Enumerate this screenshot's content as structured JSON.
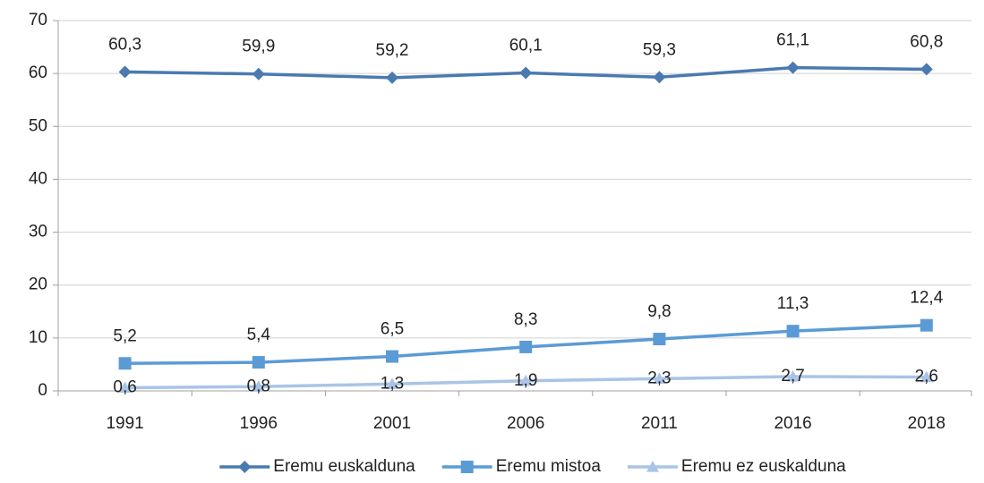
{
  "chart_data": {
    "type": "line",
    "categories": [
      "1991",
      "1996",
      "2001",
      "2006",
      "2011",
      "2016",
      "2018"
    ],
    "series": [
      {
        "name": "Eremu euskalduna",
        "color": "#4a7ab0",
        "marker": "diamond",
        "values": [
          60.3,
          59.9,
          59.2,
          60.1,
          59.3,
          61.1,
          60.8
        ],
        "value_labels": [
          "60,3",
          "59,9",
          "59,2",
          "60,1",
          "59,3",
          "61,1",
          "60,8"
        ]
      },
      {
        "name": "Eremu mistoa",
        "color": "#5b9bd5",
        "marker": "square",
        "values": [
          5.2,
          5.4,
          6.5,
          8.3,
          9.8,
          11.3,
          12.4
        ],
        "value_labels": [
          "5,2",
          "5,4",
          "6,5",
          "8,3",
          "9,8",
          "11,3",
          "12,4"
        ]
      },
      {
        "name": "Eremu ez euskalduna",
        "color": "#a9c4e6",
        "marker": "triangle",
        "values": [
          0.6,
          0.8,
          1.3,
          1.9,
          2.3,
          2.7,
          2.6
        ],
        "value_labels": [
          "0,6",
          "0,8",
          "1,3",
          "1,9",
          "2,3",
          "2,7",
          "2,6"
        ]
      }
    ],
    "ylim": [
      0,
      70
    ],
    "yticks": [
      0,
      10,
      20,
      30,
      40,
      50,
      60,
      70
    ],
    "grid": true,
    "legend": "bottom"
  }
}
